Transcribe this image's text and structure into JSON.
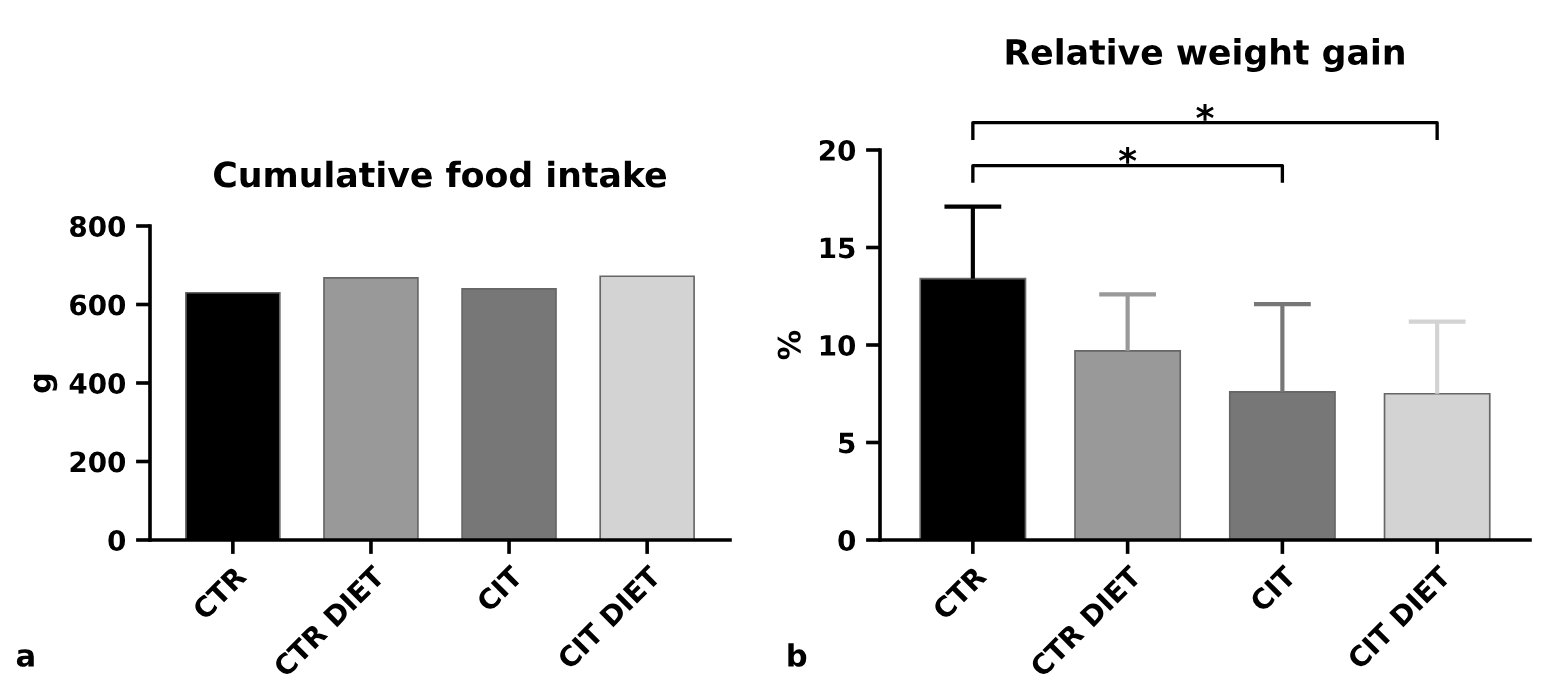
{
  "chart_data": [
    {
      "type": "bar",
      "title": "Cumulative food intake",
      "ylabel": "g",
      "categories": [
        "CTR",
        "CTR DIET",
        "CIT",
        "CIT DIET"
      ],
      "values": [
        630,
        668,
        640,
        672
      ],
      "colors": [
        "#000000",
        "#999999",
        "#777777",
        "#d3d3d3"
      ],
      "ylim": [
        0,
        800
      ],
      "yticks": [
        0,
        200,
        400,
        600,
        800
      ],
      "grid": false,
      "annotations": [
        "a"
      ]
    },
    {
      "type": "bar",
      "title": "Relative weight gain",
      "ylabel": "%",
      "categories": [
        "CTR",
        "CTR DIET",
        "CIT",
        "CIT DIET"
      ],
      "values": [
        13.4,
        9.7,
        7.6,
        7.5
      ],
      "errors": [
        [
          13.4,
          17.1
        ],
        [
          9.7,
          12.6
        ],
        [
          7.6,
          12.1
        ],
        [
          7.5,
          11.2
        ]
      ],
      "colors": [
        "#000000",
        "#999999",
        "#777777",
        "#d3d3d3"
      ],
      "ylim": [
        0,
        20
      ],
      "yticks": [
        0,
        5,
        10,
        15,
        20
      ],
      "grid": false,
      "annotations": [
        "b",
        "*",
        "*"
      ]
    }
  ]
}
